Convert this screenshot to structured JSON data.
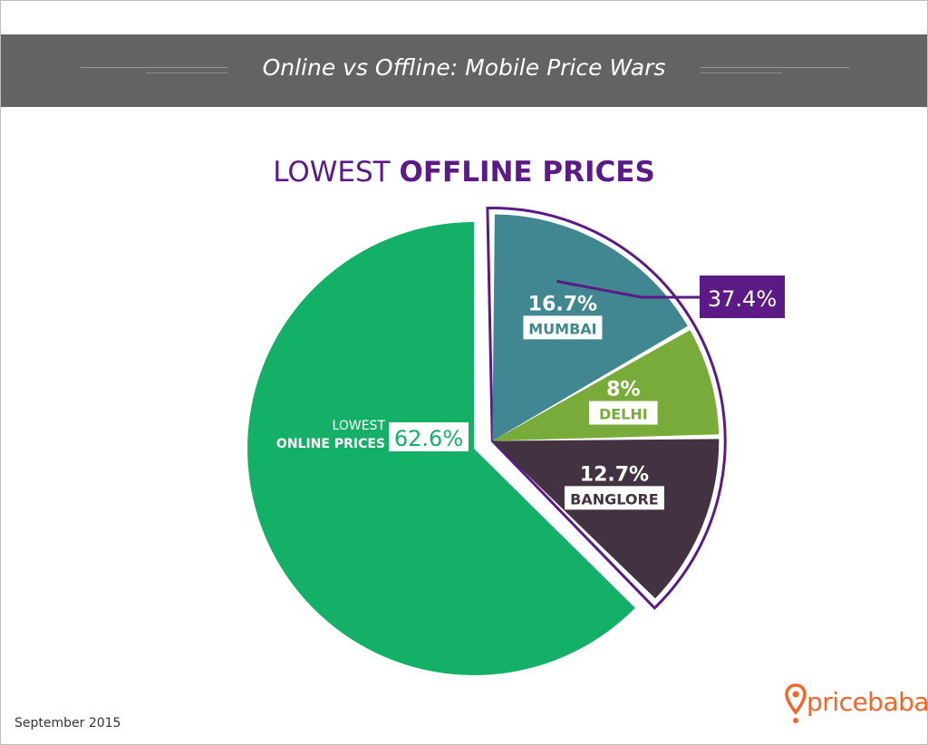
{
  "banner": {
    "title": "Online vs Offline: Mobile Price Wars"
  },
  "heading": {
    "prefix": "LOWEST",
    "emphasis": "OFFLINE PRICES"
  },
  "footer": {
    "date": "September 2015"
  },
  "brand": {
    "name": "pricebaba",
    "color": "#f2662a",
    "icon": "location-pin-icon"
  },
  "colors": {
    "online": "#15b067",
    "mumbai": "#418791",
    "delhi": "#79ab3a",
    "banglore": "#433241",
    "accent": "#5b1a86",
    "banner": "#636363"
  },
  "chart_data": {
    "type": "pie",
    "title": "LOWEST OFFLINE PRICES",
    "online": {
      "label_line1": "LOWEST",
      "label_line2": "ONLINE PRICES",
      "value": 62.6,
      "value_label": "62.6%"
    },
    "offline_total": {
      "value": 37.4,
      "value_label": "37.4%"
    },
    "slices": [
      {
        "name": "MUMBAI",
        "value": 16.7,
        "value_label": "16.7%"
      },
      {
        "name": "DELHI",
        "value": 8,
        "value_label": "8%"
      },
      {
        "name": "BANGLORE",
        "value": 12.7,
        "value_label": "12.7%"
      }
    ]
  }
}
